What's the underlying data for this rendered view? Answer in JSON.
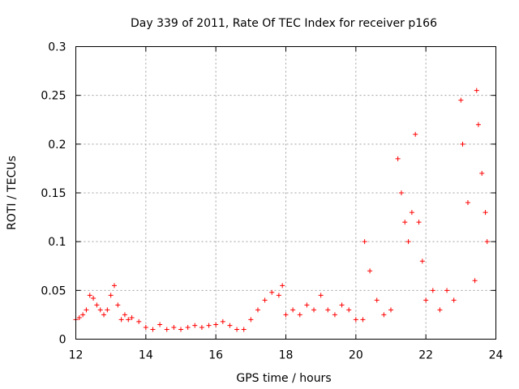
{
  "chart_data": {
    "type": "scatter",
    "title": "Day 339 of 2011, Rate Of TEC Index for receiver p166",
    "xlabel": "GPS time / hours",
    "ylabel": "ROTI / TECUs",
    "xlim": [
      12,
      24
    ],
    "ylim": [
      0,
      0.3
    ],
    "x_ticks": [
      12,
      14,
      16,
      18,
      20,
      22,
      24
    ],
    "x_tick_labels": [
      "12",
      "14",
      "16",
      "18",
      "20",
      "22",
      "24"
    ],
    "y_ticks": [
      0,
      0.05,
      0.1,
      0.15,
      0.2,
      0.25,
      0.3
    ],
    "y_tick_labels": [
      "0",
      "0.05",
      "0.1",
      "0.15",
      "0.2",
      "0.25",
      "0.3"
    ],
    "grid": true,
    "marker": "plus",
    "color": "#ff0000",
    "series": [
      {
        "name": "ROTI",
        "x": [
          12.0,
          12.1,
          12.2,
          12.3,
          12.4,
          12.5,
          12.6,
          12.7,
          12.8,
          12.9,
          13.0,
          13.1,
          13.2,
          13.3,
          13.4,
          13.5,
          13.6,
          13.8,
          14.0,
          14.2,
          14.4,
          14.6,
          14.8,
          15.0,
          15.2,
          15.4,
          15.6,
          15.8,
          16.0,
          16.2,
          16.4,
          16.6,
          16.8,
          17.0,
          17.2,
          17.4,
          17.6,
          17.8,
          17.9,
          18.0,
          18.2,
          18.4,
          18.6,
          18.8,
          19.0,
          19.2,
          19.4,
          19.6,
          19.8,
          20.0,
          20.2,
          20.25,
          20.4,
          20.6,
          20.8,
          21.0,
          21.2,
          21.3,
          21.4,
          21.5,
          21.6,
          21.7,
          21.8,
          21.9,
          22.0,
          22.2,
          22.4,
          22.6,
          22.8,
          23.0,
          23.05,
          23.2,
          23.4,
          23.45,
          23.5,
          23.6,
          23.7,
          23.75
        ],
        "y": [
          0.02,
          0.022,
          0.025,
          0.03,
          0.045,
          0.042,
          0.035,
          0.03,
          0.025,
          0.03,
          0.045,
          0.055,
          0.035,
          0.02,
          0.025,
          0.02,
          0.022,
          0.018,
          0.012,
          0.01,
          0.015,
          0.01,
          0.012,
          0.01,
          0.012,
          0.014,
          0.012,
          0.014,
          0.015,
          0.018,
          0.014,
          0.01,
          0.01,
          0.02,
          0.03,
          0.04,
          0.048,
          0.045,
          0.055,
          0.025,
          0.03,
          0.025,
          0.035,
          0.03,
          0.045,
          0.03,
          0.025,
          0.035,
          0.03,
          0.02,
          0.02,
          0.1,
          0.07,
          0.04,
          0.025,
          0.03,
          0.185,
          0.15,
          0.12,
          0.1,
          0.13,
          0.21,
          0.12,
          0.08,
          0.04,
          0.05,
          0.03,
          0.05,
          0.04,
          0.245,
          0.2,
          0.14,
          0.06,
          0.255,
          0.22,
          0.17,
          0.13,
          0.1
        ]
      }
    ]
  }
}
